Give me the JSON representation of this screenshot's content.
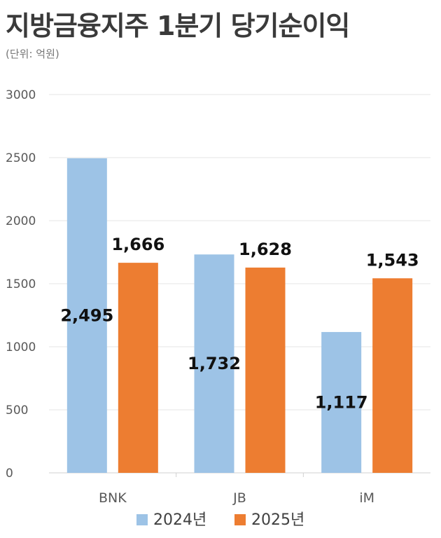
{
  "title": "지방금융지주 1분기 당기순이익",
  "subtitle": "(단위: 억원)",
  "chart_data": {
    "type": "bar",
    "categories": [
      "BNK",
      "JB",
      "iM"
    ],
    "series": [
      {
        "name": "2024년",
        "color": "#9DC3E6",
        "values": [
          2495,
          1732,
          1117
        ],
        "labels": [
          "2,495",
          "1,732",
          "1,117"
        ]
      },
      {
        "name": "2025년",
        "color": "#ED7D31",
        "values": [
          1666,
          1628,
          1543
        ],
        "labels": [
          "1,666",
          "1,628",
          "1,543"
        ]
      }
    ],
    "yticks": [
      "0",
      "500",
      "1000",
      "1500",
      "2000",
      "2500",
      "3000"
    ],
    "ylim": [
      0,
      3000
    ],
    "grid": true,
    "legend_position": "bottom"
  }
}
